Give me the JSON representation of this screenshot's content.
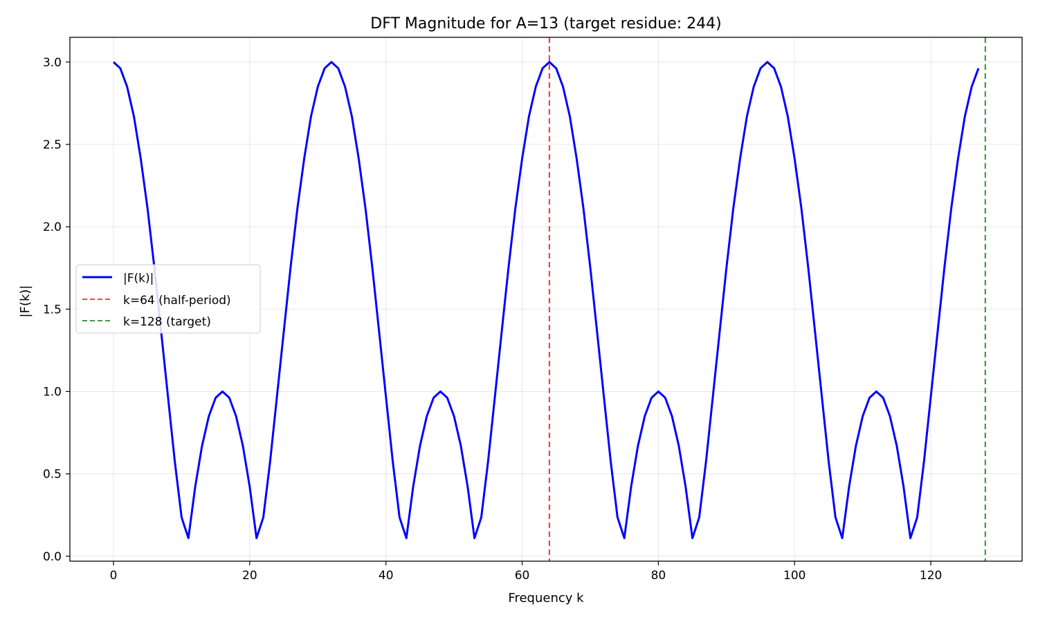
{
  "chart_data": {
    "type": "line",
    "title": "DFT Magnitude for A=13 (target residue: 244)",
    "xlabel": "Frequency k",
    "ylabel": "|F(k)|",
    "xlim": [
      -6.4,
      133.4
    ],
    "ylim": [
      -0.03,
      3.15
    ],
    "xticks": [
      0,
      20,
      40,
      60,
      80,
      100,
      120
    ],
    "yticks": [
      0.0,
      0.5,
      1.0,
      1.5,
      2.0,
      2.5,
      3.0
    ],
    "xtick_labels": [
      "0",
      "20",
      "40",
      "60",
      "80",
      "100",
      "120"
    ],
    "ytick_labels": [
      "0.0",
      "0.5",
      "1.0",
      "1.5",
      "2.0",
      "2.5",
      "3.0"
    ],
    "grid": true,
    "legend_position": "center-left",
    "series": [
      {
        "name": "|F(k)|",
        "color": "#0000ff",
        "style": "solid",
        "x": [
          0,
          1,
          2,
          3,
          4,
          5,
          6,
          7,
          8,
          9,
          10,
          11,
          12,
          13,
          14,
          15,
          16,
          17,
          18,
          19,
          20,
          21,
          22,
          23,
          24,
          25,
          26,
          27,
          28,
          29,
          30,
          31,
          32,
          33,
          34,
          35,
          36,
          37,
          38,
          39,
          40,
          41,
          42,
          43,
          44,
          45,
          46,
          47,
          48,
          49,
          50,
          51,
          52,
          53,
          54,
          55,
          56,
          57,
          58,
          59,
          60,
          61,
          62,
          63,
          64,
          65,
          66,
          67,
          68,
          69,
          70,
          71,
          72,
          73,
          74,
          75,
          76,
          77,
          78,
          79,
          80,
          81,
          82,
          83,
          84,
          85,
          86,
          87,
          88,
          89,
          90,
          91,
          92,
          93,
          94,
          95,
          96,
          97,
          98,
          99,
          100,
          101,
          102,
          103,
          104,
          105,
          106,
          107,
          108,
          109,
          110,
          111,
          112,
          113,
          114,
          115,
          116,
          117,
          118,
          119,
          120,
          121,
          122,
          123,
          124,
          125,
          126,
          127
        ],
        "y": [
          3.0,
          2.962,
          2.85,
          2.67,
          2.414,
          2.111,
          1.753,
          1.363,
          0.969,
          0.576,
          0.236,
          0.11,
          0.422,
          0.67,
          0.85,
          0.962,
          1.0,
          0.962,
          0.85,
          0.67,
          0.422,
          0.11,
          0.236,
          0.576,
          0.969,
          1.363,
          1.753,
          2.111,
          2.414,
          2.67,
          2.85,
          2.962,
          3.0,
          2.962,
          2.85,
          2.67,
          2.414,
          2.111,
          1.753,
          1.363,
          0.969,
          0.576,
          0.236,
          0.11,
          0.422,
          0.67,
          0.85,
          0.962,
          1.0,
          0.962,
          0.85,
          0.67,
          0.422,
          0.11,
          0.236,
          0.576,
          0.969,
          1.363,
          1.753,
          2.111,
          2.414,
          2.67,
          2.85,
          2.962,
          3.0,
          2.962,
          2.85,
          2.67,
          2.414,
          2.111,
          1.753,
          1.363,
          0.969,
          0.576,
          0.236,
          0.11,
          0.422,
          0.67,
          0.85,
          0.962,
          1.0,
          0.962,
          0.85,
          0.67,
          0.422,
          0.11,
          0.236,
          0.576,
          0.969,
          1.363,
          1.753,
          2.111,
          2.414,
          2.67,
          2.85,
          2.962,
          3.0,
          2.962,
          2.85,
          2.67,
          2.414,
          2.111,
          1.753,
          1.363,
          0.969,
          0.576,
          0.236,
          0.11,
          0.422,
          0.67,
          0.85,
          0.962,
          1.0,
          0.962,
          0.85,
          0.67,
          0.422,
          0.11,
          0.236,
          0.576,
          0.969,
          1.363,
          1.753,
          2.111,
          2.414,
          2.67,
          2.85,
          2.962
        ]
      }
    ],
    "vlines": [
      {
        "name": "k=64 (half-period)",
        "x": 64,
        "color": "#ee4444",
        "style": "dashed"
      },
      {
        "name": "k=128 (target)",
        "x": 128,
        "color": "#449944",
        "style": "dashed"
      }
    ]
  }
}
